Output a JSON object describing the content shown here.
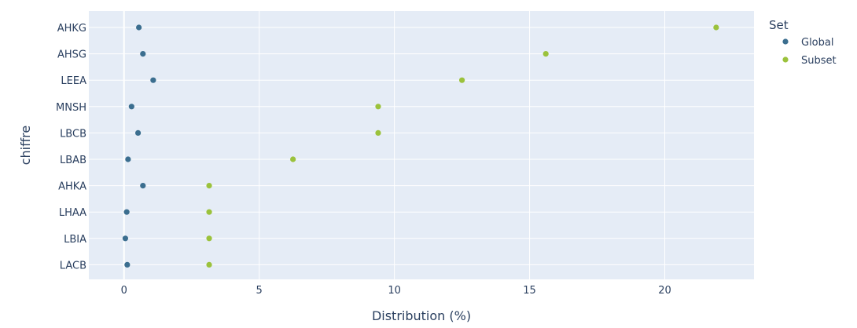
{
  "chart_data": {
    "type": "scatter",
    "orientation": "horizontal",
    "title": "",
    "xlabel": "Distribution (%)",
    "ylabel": "chiffre",
    "xlim": [
      -1.3,
      23.3
    ],
    "xticks": [
      0,
      5,
      10,
      15,
      20
    ],
    "categories": [
      "AHKG",
      "AHSG",
      "LEEA",
      "MNSH",
      "LBCB",
      "LBAB",
      "AHKA",
      "LHAA",
      "LBIA",
      "LACB"
    ],
    "legend": {
      "title": "Set",
      "position": "top-right-outside"
    },
    "grid": true,
    "series": [
      {
        "name": "Global",
        "color": "#3b6e8f",
        "values": [
          0.55,
          0.7,
          1.08,
          0.28,
          0.52,
          0.15,
          0.7,
          0.1,
          0.05,
          0.12
        ]
      },
      {
        "name": "Subset",
        "color": "#9bc23c",
        "values": [
          21.9,
          15.6,
          12.5,
          9.4,
          9.4,
          6.25,
          3.15,
          3.15,
          3.15,
          3.15
        ]
      }
    ]
  }
}
